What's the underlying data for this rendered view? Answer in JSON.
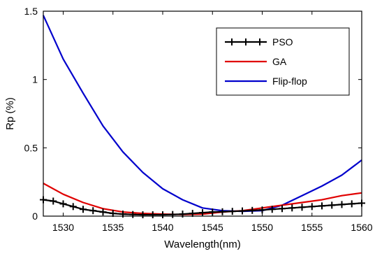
{
  "chart_data": {
    "type": "line",
    "title": "",
    "xlabel": "Wavelength(nm)",
    "ylabel": "Rp (%)",
    "xlim": [
      1528,
      1560
    ],
    "ylim": [
      0,
      1.5
    ],
    "xticks": [
      1530,
      1535,
      1540,
      1545,
      1550,
      1555,
      1560
    ],
    "yticks": [
      0,
      0.5,
      1,
      1.5
    ],
    "ytick_labels": [
      "0",
      "0.5",
      "1",
      "1.5"
    ],
    "grid": false,
    "legend_position": "top-right",
    "series": [
      {
        "name": "PSO",
        "color": "#000000",
        "marker": "plus",
        "x": [
          1528,
          1529,
          1530,
          1531,
          1532,
          1533,
          1534,
          1535,
          1536,
          1537,
          1538,
          1539,
          1540,
          1541,
          1542,
          1543,
          1544,
          1545,
          1546,
          1547,
          1548,
          1549,
          1550,
          1551,
          1552,
          1553,
          1554,
          1555,
          1556,
          1557,
          1558,
          1559,
          1560
        ],
        "y": [
          0.12,
          0.11,
          0.09,
          0.07,
          0.05,
          0.04,
          0.03,
          0.02,
          0.015,
          0.012,
          0.01,
          0.01,
          0.01,
          0.012,
          0.015,
          0.02,
          0.025,
          0.03,
          0.032,
          0.035,
          0.038,
          0.042,
          0.045,
          0.05,
          0.055,
          0.06,
          0.065,
          0.07,
          0.075,
          0.08,
          0.085,
          0.09,
          0.095
        ]
      },
      {
        "name": "GA",
        "color": "#e00000",
        "x": [
          1528,
          1530,
          1532,
          1534,
          1536,
          1538,
          1540,
          1542,
          1544,
          1546,
          1548,
          1550,
          1552,
          1554,
          1556,
          1558,
          1560
        ],
        "y": [
          0.24,
          0.16,
          0.1,
          0.055,
          0.03,
          0.02,
          0.015,
          0.012,
          0.015,
          0.03,
          0.04,
          0.06,
          0.08,
          0.1,
          0.12,
          0.15,
          0.17
        ]
      },
      {
        "name": "Flip-flop",
        "color": "#0000cc",
        "x": [
          1528,
          1530,
          1532,
          1534,
          1536,
          1538,
          1540,
          1542,
          1544,
          1546,
          1548,
          1550,
          1552,
          1554,
          1556,
          1558,
          1560
        ],
        "y": [
          1.47,
          1.15,
          0.9,
          0.66,
          0.47,
          0.32,
          0.2,
          0.12,
          0.06,
          0.04,
          0.035,
          0.04,
          0.08,
          0.15,
          0.22,
          0.3,
          0.41
        ]
      }
    ]
  }
}
